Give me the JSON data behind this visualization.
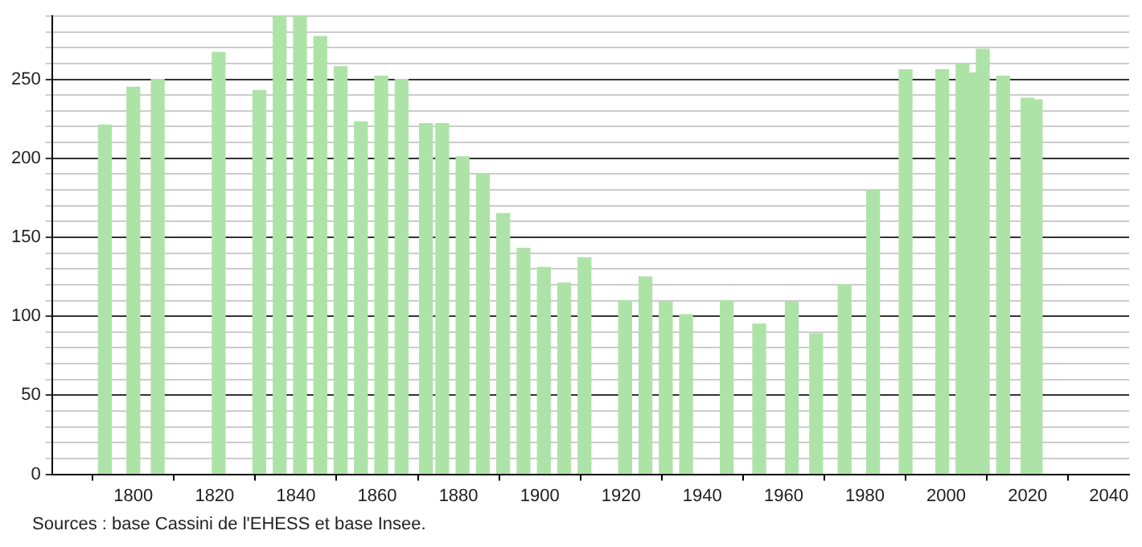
{
  "chart_data": {
    "type": "bar",
    "x": [
      1793,
      1800,
      1806,
      1821,
      1831,
      1836,
      1841,
      1846,
      1851,
      1856,
      1861,
      1866,
      1872,
      1876,
      1881,
      1886,
      1891,
      1896,
      1901,
      1906,
      1911,
      1921,
      1926,
      1931,
      1936,
      1946,
      1954,
      1962,
      1968,
      1975,
      1982,
      1990,
      1999,
      2004,
      2006,
      2009,
      2014,
      2020,
      2022
    ],
    "values": [
      221,
      245,
      250,
      267,
      243,
      290,
      290,
      277,
      258,
      223,
      252,
      250,
      222,
      222,
      201,
      190,
      165,
      143,
      131,
      121,
      137,
      110,
      125,
      109,
      101,
      110,
      95,
      109,
      89,
      120,
      180,
      256,
      256,
      260,
      254,
      269,
      252,
      238,
      237
    ],
    "color": "#aee3a8",
    "xlim": [
      1780,
      2045
    ],
    "xticks": [
      1800,
      1820,
      1840,
      1860,
      1880,
      1900,
      1920,
      1940,
      1960,
      1980,
      2000,
      2020,
      2040
    ],
    "ylim": [
      0,
      290
    ],
    "yticks": [
      0,
      {
        "value": 10,
        "label": null
      },
      {
        "value": 20,
        "label": null
      },
      {
        "value": 30,
        "label": null
      },
      {
        "value": 40,
        "label": null
      },
      50,
      {
        "value": 60,
        "label": null
      },
      {
        "value": 70,
        "label": null
      },
      {
        "value": 80,
        "label": null
      },
      {
        "value": 90,
        "label": null
      },
      100,
      {
        "value": 110,
        "label": null
      },
      {
        "value": 120,
        "label": null
      },
      {
        "value": 130,
        "label": null
      },
      {
        "value": 140,
        "label": null
      },
      150,
      {
        "value": 160,
        "label": null
      },
      {
        "value": 170,
        "label": null
      },
      {
        "value": 180,
        "label": null
      },
      {
        "value": 190,
        "label": null
      },
      200,
      {
        "value": 210,
        "label": null
      },
      {
        "value": 220,
        "label": null
      },
      {
        "value": 230,
        "label": null
      },
      {
        "value": 240,
        "label": null
      },
      250,
      {
        "value": 260,
        "label": null
      },
      {
        "value": 270,
        "label": null
      },
      {
        "value": 280,
        "label": null
      },
      {
        "value": 290,
        "label": null
      }
    ],
    "grid": "y",
    "annotations": [
      "Sources : base Cassini de l'EHESS et base Insee."
    ]
  }
}
